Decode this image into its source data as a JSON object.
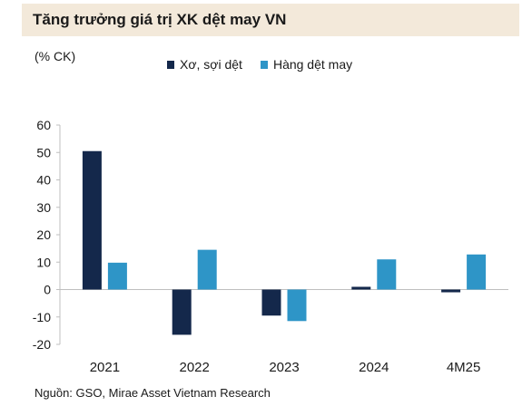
{
  "header": {
    "title": "Tăng trưởng giá trị XK dệt may VN"
  },
  "unit_label": "(% CK)",
  "source": "Nguồn: GSO, Mirae Asset Vietnam Research",
  "chart_data": {
    "type": "bar",
    "title": "Tăng trưởng giá trị XK dệt may VN",
    "ylabel": "(% CK)",
    "categories": [
      "2021",
      "2022",
      "2023",
      "2024",
      "4M25"
    ],
    "series": [
      {
        "name": "Xơ, sợi dệt",
        "color": "#14284b",
        "values": [
          50.5,
          -16.5,
          -9.5,
          1.0,
          -1.0
        ]
      },
      {
        "name": "Hàng dệt may",
        "color": "#2e95c7",
        "values": [
          9.8,
          14.5,
          -11.5,
          11.0,
          12.8
        ]
      }
    ],
    "ylim": [
      -20,
      60
    ],
    "yticks": [
      -20,
      -10,
      0,
      10,
      20,
      30,
      40,
      50,
      60
    ],
    "grid": false,
    "legend": "top"
  }
}
